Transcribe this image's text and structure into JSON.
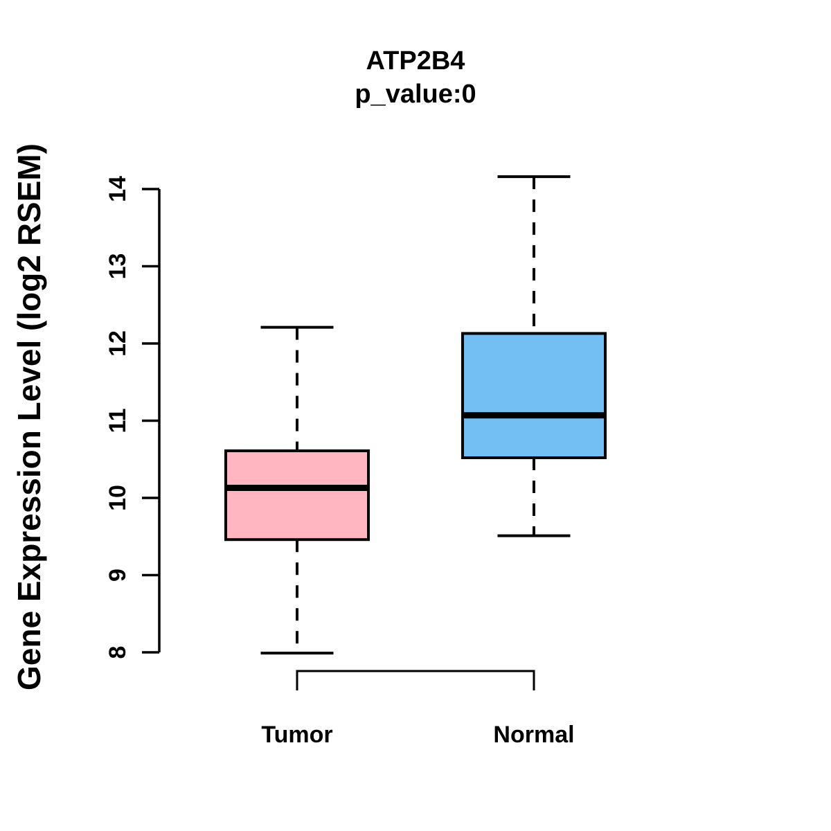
{
  "page": {
    "background": "#ffffff"
  },
  "chart_data": {
    "type": "boxplot",
    "title": "ATP2B4",
    "subtitle": "p_value:0",
    "xlabel": "",
    "ylabel": "Gene Expression Level (log2 RSEM)",
    "categories": [
      "Tumor",
      "Normal"
    ],
    "yticks": [
      8,
      9,
      10,
      11,
      12,
      13,
      14
    ],
    "ylim": [
      7.7,
      14.3
    ],
    "grid": false,
    "legend": "none",
    "line_color": "#000000",
    "series": [
      {
        "name": "Tumor",
        "color": "#FFB6C1",
        "whisker_low": 7.99,
        "q1": 9.46,
        "median": 10.13,
        "q3": 10.61,
        "whisker_high": 12.21
      },
      {
        "name": "Normal",
        "color": "#73BFF4",
        "whisker_low": 9.51,
        "q1": 10.52,
        "median": 11.07,
        "q3": 12.13,
        "whisker_high": 14.16
      }
    ]
  }
}
